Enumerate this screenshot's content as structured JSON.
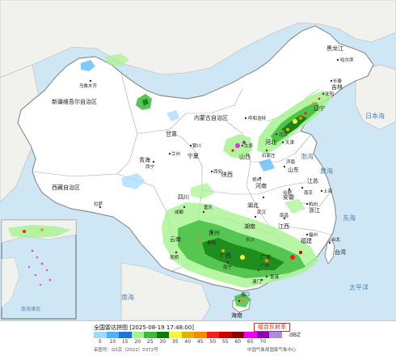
{
  "legend": {
    "title": "全国雷达拼图 [2025-08-19 17:48:00]",
    "product": "组合反射率",
    "unit": "dBZ",
    "review_no": "审图号：GS京（2022）0372号",
    "producer": "中国气象局国家气象中心",
    "scale": [
      {
        "value": "5",
        "color": "#9fd9ff"
      },
      {
        "value": "10",
        "color": "#4cb4f5"
      },
      {
        "value": "15",
        "color": "#1e73d8"
      },
      {
        "value": "20",
        "color": "#a6f28f"
      },
      {
        "value": "25",
        "color": "#3dba3d"
      },
      {
        "value": "30",
        "color": "#0f7a0f"
      },
      {
        "value": "35",
        "color": "#f5f53d"
      },
      {
        "value": "40",
        "color": "#e0b400"
      },
      {
        "value": "45",
        "color": "#f58c00"
      },
      {
        "value": "50",
        "color": "#f51e1e"
      },
      {
        "value": "55",
        "color": "#c80000"
      },
      {
        "value": "60",
        "color": "#8c0000"
      },
      {
        "value": "65",
        "color": "#f000f0"
      },
      {
        "value": "70",
        "color": "#9600b4"
      },
      {
        "value": "",
        "color": "#ae8cdc"
      }
    ]
  },
  "regions": {
    "heilongjiang": "黑龙江",
    "jilin": "吉林",
    "liaoning": "辽宁",
    "inner_mongolia": "内蒙古自治区",
    "xinjiang": "新疆维吾尔自治区",
    "gansu": "甘肃",
    "ningxia": "宁夏",
    "qinghai": "青海",
    "xizang": "西藏自治区",
    "sichuan": "四川",
    "shaanxi": "陕西",
    "shanxi": "山西",
    "hebei": "河北",
    "shandong": "山东",
    "henan": "河南",
    "hubei": "湖北",
    "hunan": "湖南",
    "jiangxi": "江西",
    "anhui": "安徽",
    "jiangsu": "江苏",
    "zhejiang": "浙江",
    "fujian": "福建",
    "guangdong": "广东",
    "guangxi": "广西",
    "guizhou": "贵州",
    "yunnan": "云南",
    "taiwan": "台湾",
    "hainan": "海南"
  },
  "cities": {
    "harbin": "哈尔滨",
    "changchun": "长春",
    "shenyang": "沈阳",
    "hohhot": "呼和浩特",
    "beijing": "北京",
    "tianjin": "天津",
    "urumqi": "乌鲁木齐",
    "lanzhou": "兰州",
    "xining": "西宁",
    "yinchuan": "银川",
    "xian": "西安",
    "taiyuan": "太原",
    "shijiazhuang": "石家庄",
    "jinan": "济南",
    "zhengzhou": "郑州",
    "hefei": "合肥",
    "nanjing": "南京",
    "shanghai": "上海",
    "hangzhou": "杭州",
    "wuhan": "武汉",
    "changsha": "长沙",
    "nanchang": "南昌",
    "fuzhou": "福州",
    "taipei": "台北",
    "chengdu": "成都",
    "chongqing": "重庆",
    "guiyang": "贵阳",
    "kunming": "昆明",
    "nanning": "南宁",
    "guangzhou": "广州",
    "hongkong": "香港",
    "macau": "澳门",
    "haikou": "海口",
    "lhasa": "拉萨"
  },
  "seas": {
    "bohai": "渤海",
    "yellow_sea": "黄海",
    "east_sea": "东海",
    "pacific": "太平洋",
    "sea_of_japan": "日本海",
    "south_sea": "南海"
  },
  "inset": {
    "islands_label": "南海诸岛"
  }
}
